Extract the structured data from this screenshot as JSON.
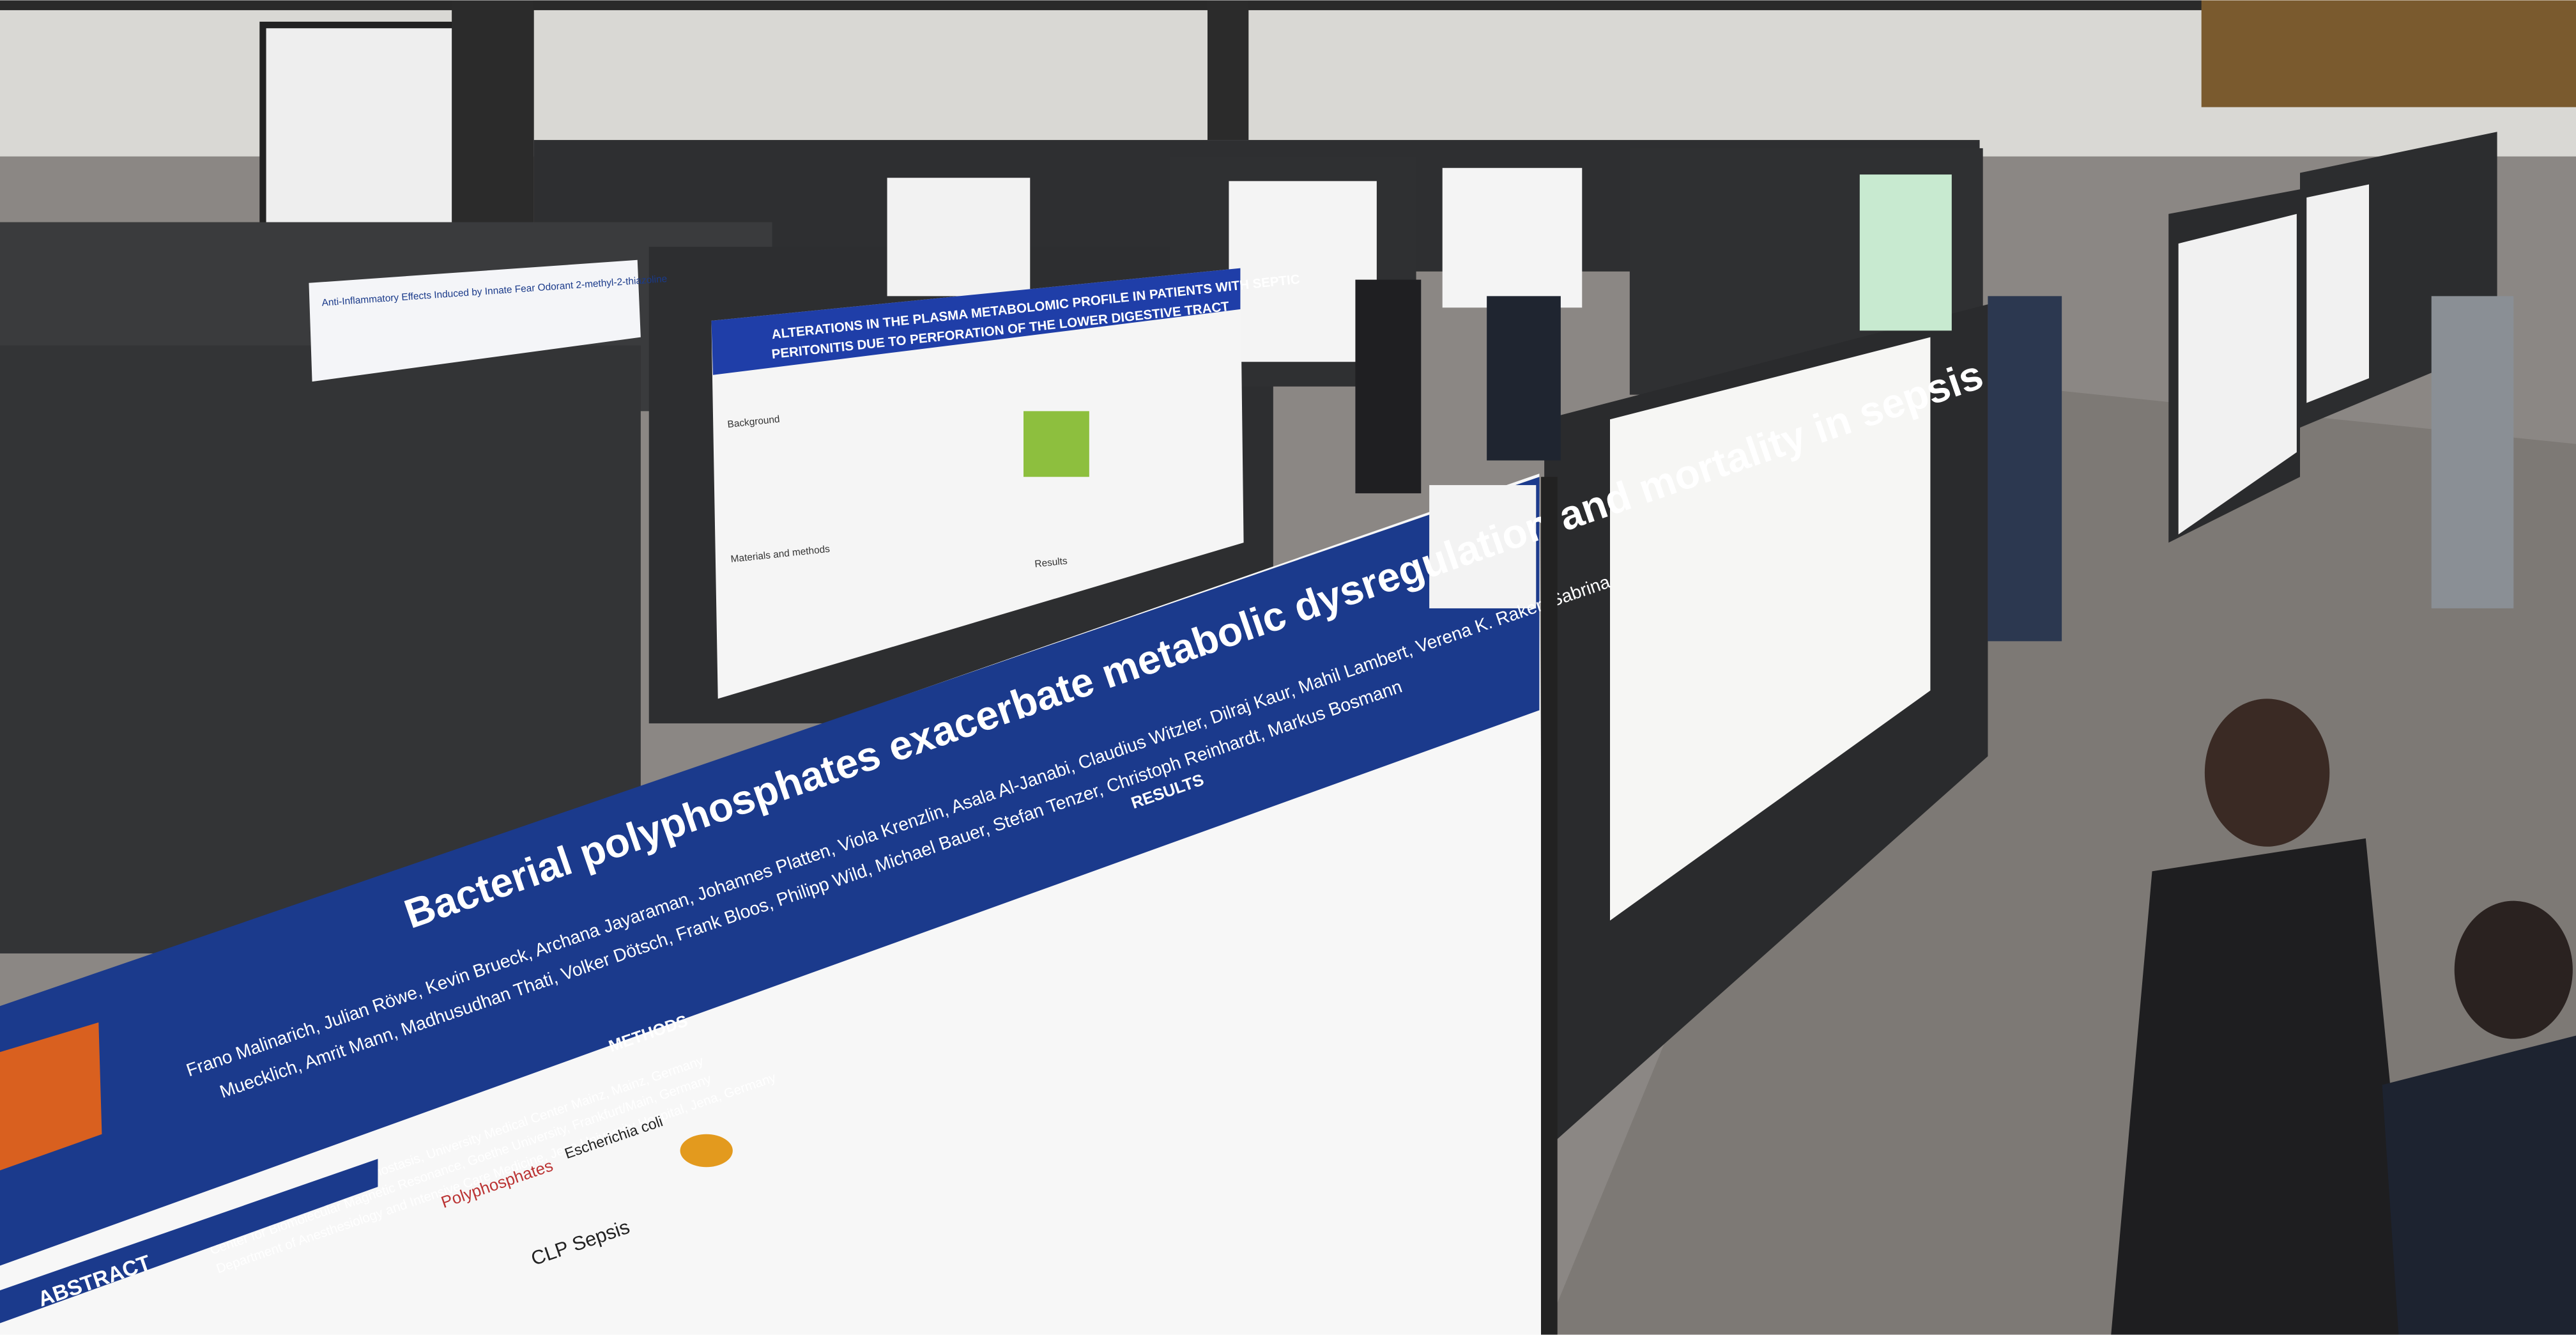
{
  "posters": [
    {
      "title": "Bacterial polyphosphates exacerbate metabolic dysregulation and mortality in sepsis",
      "authors": "Frano Malinarich, Julian Röwe, Kevin Brueck, Archana Jayaraman, Johannes Platten, Viola Krenzlin, Asala Al-Janabi, Claudius Witzler, Dilraj Kaur, Mahil Lambert, Verena K. Raker, Sabrina",
      "authors_2": "Muecklich, Amrit Mann, Madhusudhan Thati, Volker Dötsch, Frank Bloos, Philipp Wild, Michael Bauer, Stefan Tenzer, Christoph Reinhardt, Markus Bosmann",
      "affiliations": [
        "Center for Thrombosis and Hemostasis, University Medical Center Mainz, Mainz, Germany",
        "Center for Biomolecular Magnetic Resonance, Goethe University, Frankfurt/Main, Germany",
        "Department of Anesthesiology and Intensive Care Medicine, Jena University Hospital, Jena, Germany"
      ],
      "sections": [
        "ABSTRACT",
        "METHODS",
        "RESULTS"
      ],
      "labels": [
        "CLP Sepsis",
        "Polyphosphates",
        "Escherichia coli"
      ]
    },
    {
      "title": "ALTERATIONS IN THE PLASMA METABOLOMIC PROFILE IN PATIENTS WITH SEPTIC",
      "title_2": "PERITONITIS DUE TO PERFORATION OF THE LOWER DIGESTIVE TRACT",
      "sections": [
        "Background",
        "Materials and methods",
        "Results"
      ]
    },
    {
      "title": "Anti-Inflammatory Effects Induced by Innate Fear Odorant 2-methyl-2-thiazoline"
    }
  ]
}
